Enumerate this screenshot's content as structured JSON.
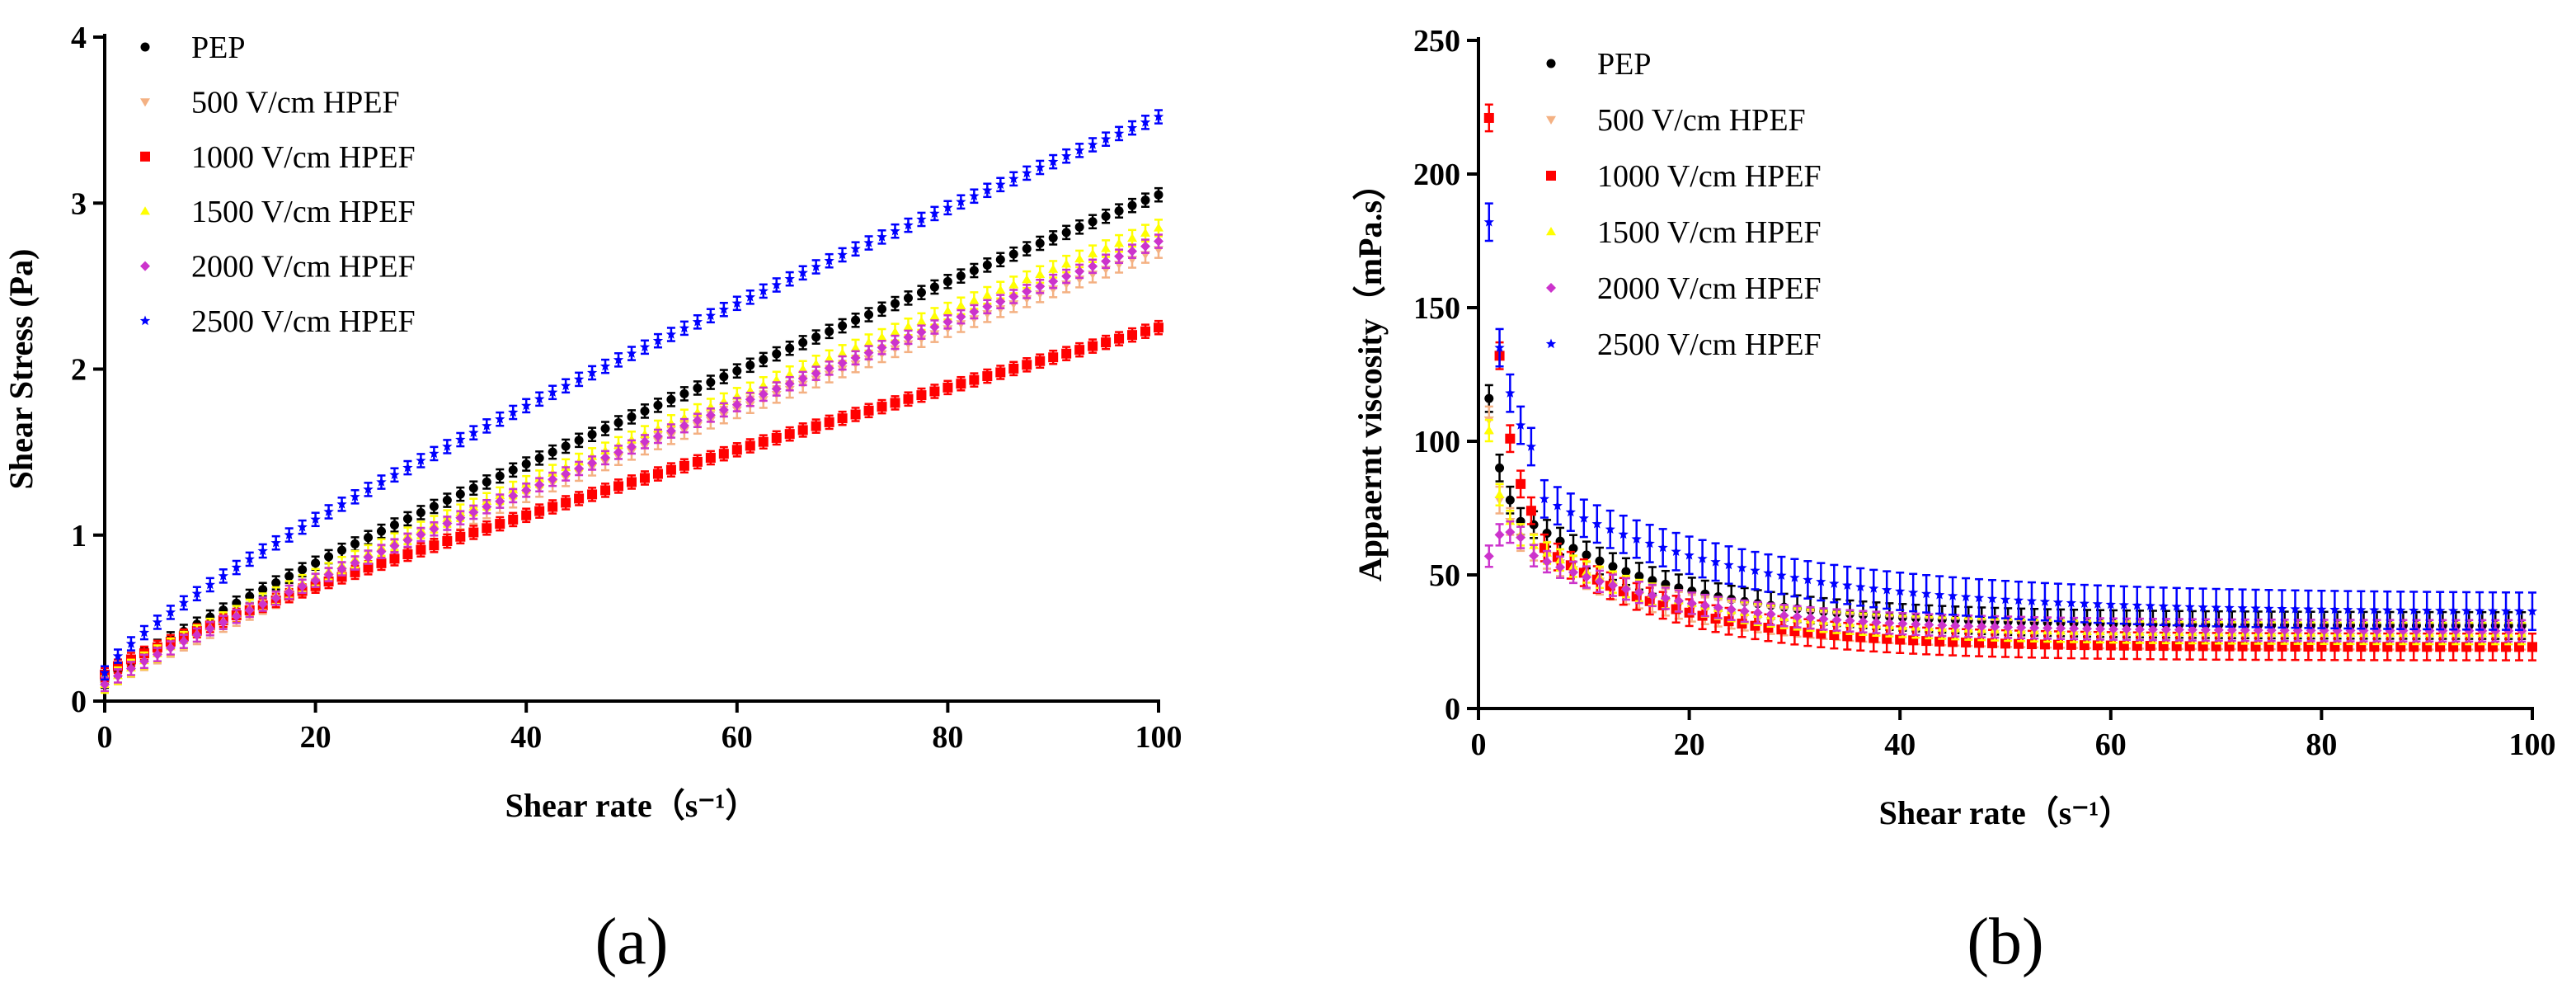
{
  "chart_data": [
    {
      "type": "scatter",
      "panel": "a",
      "panel_label": "(a)",
      "title": "",
      "xlabel": "Shear rate（s⁻¹）",
      "ylabel": "Shear Stress (Pa)",
      "xlim": [
        0,
        100
      ],
      "ylim": [
        0,
        4
      ],
      "xticks": [
        "0",
        "20",
        "40",
        "60",
        "80",
        "100"
      ],
      "yticks": [
        "0",
        "1",
        "2",
        "3",
        "4"
      ],
      "legend_position": "top-left",
      "error_bars": true,
      "series": [
        {
          "name": "PEP",
          "color": "#000000",
          "marker": "dot",
          "y0": 0.12,
          "y100": 3.05,
          "exp": 0.88,
          "err": 0.04
        },
        {
          "name": "500   V/cm HPEF",
          "color": "#F4B183",
          "marker": "triangle-down",
          "y0": 0.1,
          "y100": 2.72,
          "exp": 0.9,
          "err": 0.05
        },
        {
          "name": "1000 V/cm HPEF",
          "color": "#FF0000",
          "marker": "square",
          "y0": 0.16,
          "y100": 2.25,
          "exp": 0.85,
          "err": 0.04
        },
        {
          "name": "1500 V/cm HPEF",
          "color": "#FFFF00",
          "marker": "triangle-up",
          "y0": 0.1,
          "y100": 2.85,
          "exp": 0.9,
          "err": 0.05
        },
        {
          "name": "2000 V/cm HPEF",
          "color": "#CC33CC",
          "marker": "diamond",
          "y0": 0.1,
          "y100": 2.77,
          "exp": 0.9,
          "err": 0.04
        },
        {
          "name": "2500 V/cm HPEF",
          "color": "#0000FF",
          "marker": "star",
          "y0": 0.17,
          "y100": 3.52,
          "exp": 0.8,
          "err": 0.04
        }
      ]
    },
    {
      "type": "scatter",
      "panel": "b",
      "panel_label": "(b)",
      "title": "",
      "xlabel": "Shear rate（s⁻¹）",
      "ylabel": "Appaernt viscosity（mPa.s）",
      "xlim": [
        0,
        100
      ],
      "ylim": [
        0,
        250
      ],
      "xticks": [
        "0",
        "20",
        "40",
        "60",
        "80",
        "100"
      ],
      "yticks": [
        "0",
        "50",
        "100",
        "150",
        "200",
        "250"
      ],
      "legend_position": "top-left",
      "error_bars": true,
      "series": [
        {
          "name": "PEP",
          "color": "#000000",
          "marker": "dot",
          "first": [
            [
              1,
              116
            ],
            [
              2,
              90
            ],
            [
              3,
              78
            ],
            [
              4,
              70
            ]
          ],
          "plateau": 31,
          "amp": 55,
          "tau": 14,
          "err": 5
        },
        {
          "name": "500   V/cm HPEF",
          "color": "#F4B183",
          "marker": "triangle-down",
          "first": [
            [
              1,
              108
            ],
            [
              2,
              78
            ],
            [
              3,
              70
            ],
            [
              4,
              64
            ]
          ],
          "plateau": 27,
          "amp": 50,
          "tau": 13,
          "err": 5
        },
        {
          "name": "1000 V/cm HPEF",
          "color": "#FF0000",
          "marker": "square",
          "first": [
            [
              1,
              221
            ],
            [
              2,
              132
            ],
            [
              3,
              101
            ],
            [
              4,
              84
            ],
            [
              5,
              74
            ]
          ],
          "plateau": 23,
          "amp": 60,
          "tau": 13,
          "err": 5
        },
        {
          "name": "1500 V/cm HPEF",
          "color": "#FFFF00",
          "marker": "triangle-up",
          "first": [
            [
              1,
              104
            ],
            [
              2,
              80
            ],
            [
              3,
              70
            ],
            [
              4,
              65
            ]
          ],
          "plateau": 28,
          "amp": 48,
          "tau": 14,
          "err": 4
        },
        {
          "name": "2000 V/cm HPEF",
          "color": "#CC33CC",
          "marker": "diamond",
          "first": [
            [
              1,
              57
            ],
            [
              2,
              65
            ],
            [
              3,
              66
            ],
            [
              4,
              64
            ]
          ],
          "plateau": 29,
          "amp": 40,
          "tau": 15,
          "err": 4
        },
        {
          "name": "2500 V/cm HPEF",
          "color": "#0000FF",
          "marker": "star",
          "first": [
            [
              1,
              182
            ],
            [
              2,
              135
            ],
            [
              3,
              118
            ],
            [
              4,
              106
            ],
            [
              5,
              98
            ]
          ],
          "plateau": 36,
          "amp": 58,
          "tau": 20,
          "err": 7
        }
      ]
    }
  ]
}
